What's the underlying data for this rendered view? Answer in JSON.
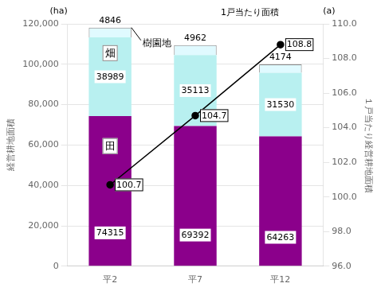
{
  "chart_data": {
    "type": "bar",
    "stacked": true,
    "categories": [
      "平2",
      "平7",
      "平12"
    ],
    "series": [
      {
        "name": "田",
        "color": "#8B008B",
        "values": [
          74315,
          69392,
          64263
        ]
      },
      {
        "name": "畑",
        "color": "#b8f0f0",
        "values": [
          38989,
          35113,
          31530
        ]
      },
      {
        "name": "樹園地",
        "color": "#e0faff",
        "values": [
          4846,
          4962,
          4174
        ]
      },
      {
        "name": "1戸当たり面積",
        "type": "line",
        "axis": "y2",
        "color": "#000000",
        "marker": "circle",
        "line_style": "solid",
        "values": [
          100.7,
          104.7,
          108.8
        ]
      }
    ],
    "ylabel": "経営耕地面積",
    "y2label": "１戸当たり経営耕地面積",
    "annotations": [
      "(ha)",
      "(a)"
    ],
    "ylim": [
      0,
      120000
    ],
    "yticks": [
      0,
      {
        "value": 20000,
        "label": "20,000"
      },
      {
        "value": 40000,
        "label": "40,000"
      },
      {
        "value": 60000,
        "label": "60,000"
      },
      {
        "value": 80000,
        "label": "80,000"
      },
      {
        "value": 100000,
        "label": "100,000"
      },
      {
        "value": 120000,
        "label": "120,000"
      }
    ],
    "y2lim": [
      96.0,
      110.0
    ],
    "y2ticks": [
      {
        "value": 96,
        "label": "96.0"
      },
      {
        "value": 98,
        "label": "98.0"
      },
      {
        "value": 100,
        "label": "100.0"
      },
      {
        "value": 102,
        "label": "102.0"
      },
      {
        "value": 104,
        "label": "104.0"
      },
      {
        "value": 106,
        "label": "106.0"
      },
      {
        "value": 108,
        "label": "108.0"
      },
      {
        "value": 110,
        "label": "110.0"
      }
    ],
    "grid": true,
    "data_labels": true
  }
}
